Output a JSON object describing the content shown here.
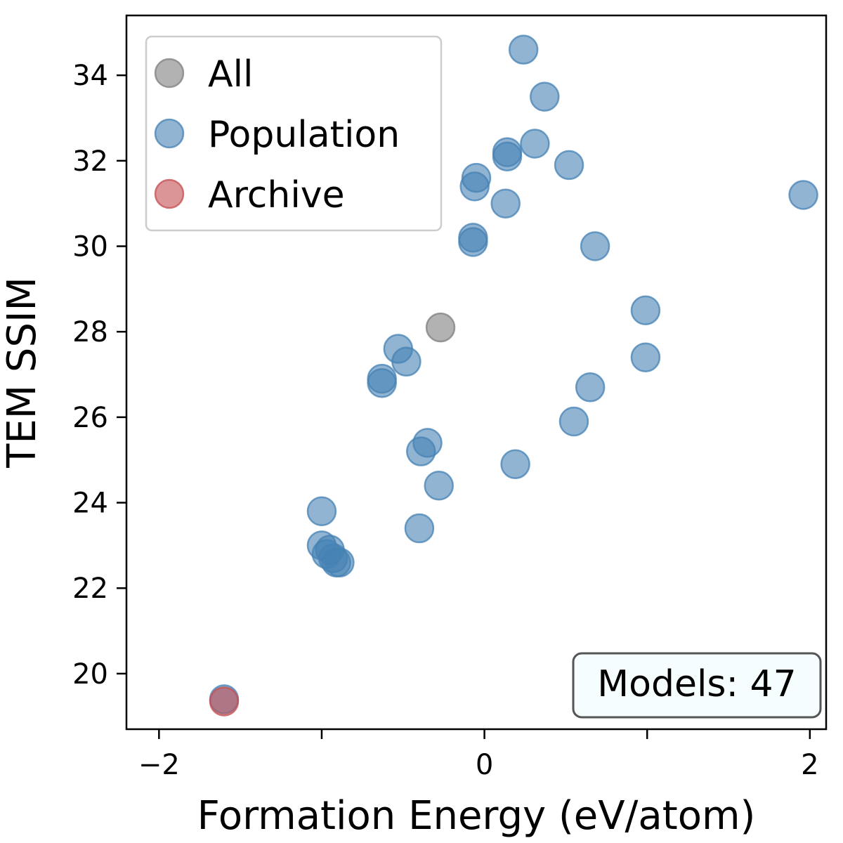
{
  "chart_data": {
    "type": "scatter",
    "title": "",
    "xlabel": "Formation Energy (eV/atom)",
    "ylabel": "TEM SSIM",
    "xlim": [
      -2.2,
      2.1
    ],
    "ylim": [
      18.7,
      35.4
    ],
    "xticks": [
      -2,
      -1,
      0,
      1,
      2
    ],
    "xtick_labels": [
      "−2",
      "",
      "0",
      "",
      "2"
    ],
    "yticks": [
      20,
      22,
      24,
      26,
      28,
      30,
      32,
      34
    ],
    "ytick_labels": [
      "20",
      "22",
      "24",
      "26",
      "28",
      "30",
      "32",
      "34"
    ],
    "grid": false,
    "legend_position": "top-left",
    "annotation": "Models: 47",
    "series": [
      {
        "name": "All",
        "color": "#7f7f7f",
        "points": [
          {
            "x": -0.27,
            "y": 28.1
          }
        ]
      },
      {
        "name": "Population",
        "color": "#4682b4",
        "points": [
          {
            "x": 0.24,
            "y": 34.6
          },
          {
            "x": 0.37,
            "y": 33.5
          },
          {
            "x": 0.14,
            "y": 32.2
          },
          {
            "x": 0.14,
            "y": 32.1
          },
          {
            "x": 0.31,
            "y": 32.4
          },
          {
            "x": 0.52,
            "y": 31.9
          },
          {
            "x": -0.05,
            "y": 31.6
          },
          {
            "x": -0.06,
            "y": 31.4
          },
          {
            "x": 0.13,
            "y": 31.0
          },
          {
            "x": 1.96,
            "y": 31.2
          },
          {
            "x": -0.07,
            "y": 30.1
          },
          {
            "x": -0.07,
            "y": 30.2
          },
          {
            "x": 0.68,
            "y": 30.0
          },
          {
            "x": 0.99,
            "y": 28.5
          },
          {
            "x": 0.99,
            "y": 27.4
          },
          {
            "x": -0.53,
            "y": 27.6
          },
          {
            "x": -0.48,
            "y": 27.3
          },
          {
            "x": -0.63,
            "y": 26.8
          },
          {
            "x": -0.63,
            "y": 26.9
          },
          {
            "x": 0.65,
            "y": 26.7
          },
          {
            "x": 0.55,
            "y": 25.9
          },
          {
            "x": -0.35,
            "y": 25.4
          },
          {
            "x": -0.39,
            "y": 25.2
          },
          {
            "x": -0.28,
            "y": 24.4
          },
          {
            "x": 0.19,
            "y": 24.9
          },
          {
            "x": -0.4,
            "y": 23.4
          },
          {
            "x": -1.0,
            "y": 23.8
          },
          {
            "x": -1.0,
            "y": 23.0
          },
          {
            "x": -0.95,
            "y": 22.9
          },
          {
            "x": -0.97,
            "y": 22.8
          },
          {
            "x": -0.93,
            "y": 22.7
          },
          {
            "x": -0.89,
            "y": 22.6
          },
          {
            "x": -0.91,
            "y": 22.6
          },
          {
            "x": -1.6,
            "y": 19.4
          }
        ]
      },
      {
        "name": "Archive",
        "color": "#c44e52",
        "points": [
          {
            "x": -1.6,
            "y": 19.35
          }
        ]
      }
    ]
  }
}
